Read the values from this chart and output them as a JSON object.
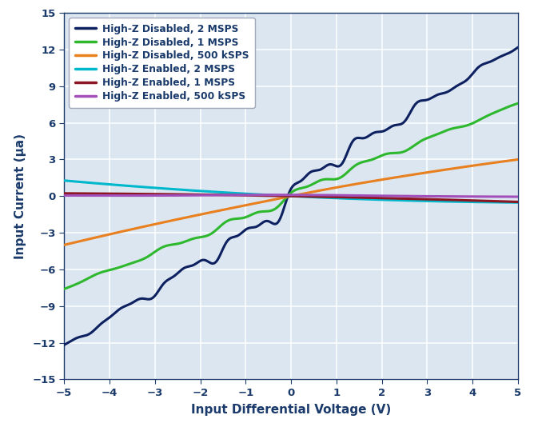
{
  "xlabel": "Input Differential Voltage (V)",
  "ylabel": "Input Current (μa)",
  "xlim": [
    -5,
    5
  ],
  "ylim": [
    -15,
    15
  ],
  "xticks": [
    -5,
    -4,
    -3,
    -2,
    -1,
    0,
    1,
    2,
    3,
    4,
    5
  ],
  "yticks": [
    -15,
    -12,
    -9,
    -6,
    -3,
    0,
    3,
    6,
    9,
    12,
    15
  ],
  "plot_bg": "#dce6f0",
  "fig_bg": "#ffffff",
  "grid_color": "#ffffff",
  "tick_color": "#1a3a6b",
  "label_color": "#1a3a6b",
  "legend": [
    {
      "label": "High-Z Disabled, 2 MSPS",
      "color": "#0d2060"
    },
    {
      "label": "High-Z Disabled, 1 MSPS",
      "color": "#2db82d"
    },
    {
      "label": "High-Z Disabled, 500 kSPS",
      "color": "#e88020"
    },
    {
      "label": "High-Z Enabled, 2 MSPS",
      "color": "#00b8cc"
    },
    {
      "label": "High-Z Enabled, 1 MSPS",
      "color": "#8b1520"
    },
    {
      "label": "High-Z Enabled, 500 kSPS",
      "color": "#a050b8"
    }
  ],
  "linewidth": 2.2
}
